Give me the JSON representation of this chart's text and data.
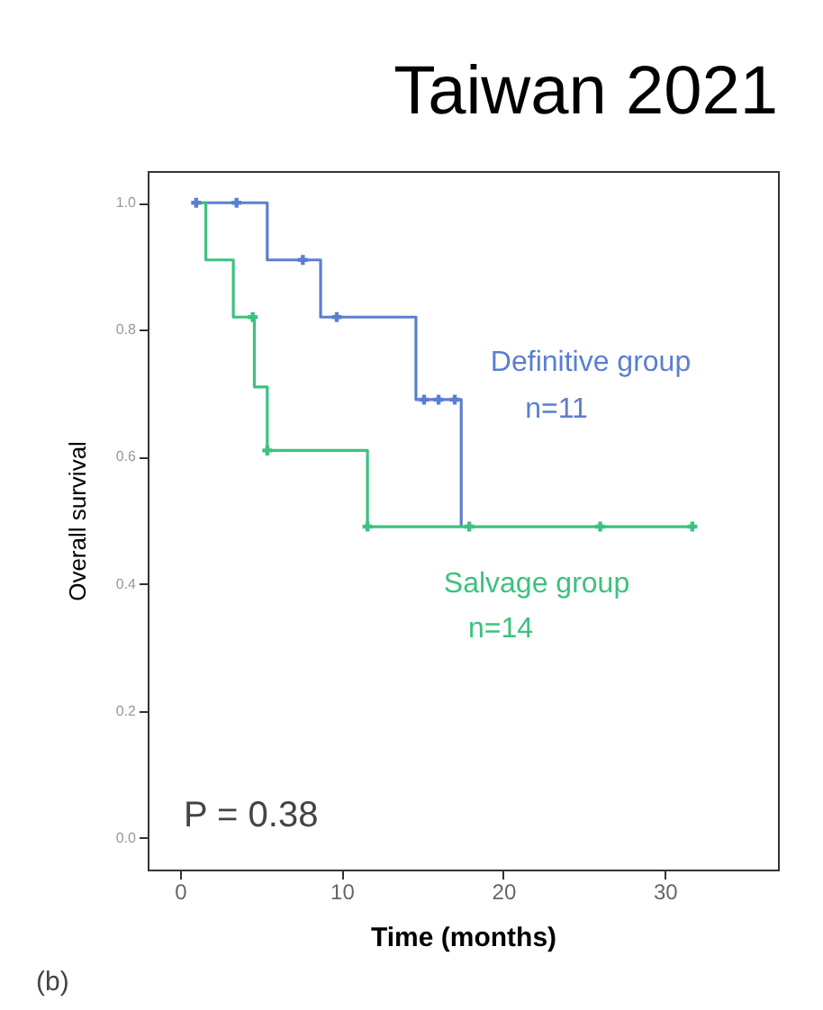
{
  "chart_data": {
    "type": "step",
    "title": "Taiwan 2021",
    "xlabel": "Time (months)",
    "ylabel": "Overall survival",
    "xlim": [
      -2,
      37
    ],
    "xticks": [
      0,
      10,
      20,
      30
    ],
    "ylim": [
      -0.05,
      1.05
    ],
    "yticks": [
      {
        "value": 0,
        "label": "0.0"
      },
      {
        "value": 0.2,
        "label": "0.2"
      },
      {
        "value": 0.4,
        "label": "0.4"
      },
      {
        "value": 0.6,
        "label": "0.6"
      },
      {
        "value": 0.8,
        "label": "0.8"
      },
      {
        "value": 1,
        "label": "1.0"
      }
    ],
    "grid": false,
    "line_style": "solid",
    "series": [
      {
        "name": "Definitive group",
        "color": "#5b7fd0",
        "x": [
          1,
          5.4,
          8.7,
          14.6,
          17.4
        ],
        "values": [
          1,
          0.91,
          0.82,
          0.69,
          0.49
        ]
      },
      {
        "name": "Salvage group",
        "color": "#3cc27f",
        "x": [
          1,
          1.6,
          3.3,
          4.6,
          5.4,
          11.6,
          31.7
        ],
        "values": [
          1,
          0.91,
          0.82,
          0.71,
          0.61,
          0.49,
          0.49
        ]
      },
      {
        "type": "scatter",
        "marker": "cross",
        "color": "#5b7fd0",
        "x": [
          1,
          3.5,
          7.6,
          9.7,
          15.1,
          16,
          17
        ],
        "values": [
          1,
          1,
          0.91,
          0.82,
          0.69,
          0.69,
          0.69
        ]
      },
      {
        "type": "scatter",
        "marker": "cross",
        "color": "#3cc27f",
        "x": [
          4.5,
          5.4,
          11.6,
          17.9,
          26,
          31.7
        ],
        "values": [
          0.82,
          0.61,
          0.49,
          0.49,
          0.49,
          0.49
        ]
      }
    ],
    "annotations": [
      "n=11",
      "n=14",
      "P =  0.38",
      "(b)"
    ]
  }
}
